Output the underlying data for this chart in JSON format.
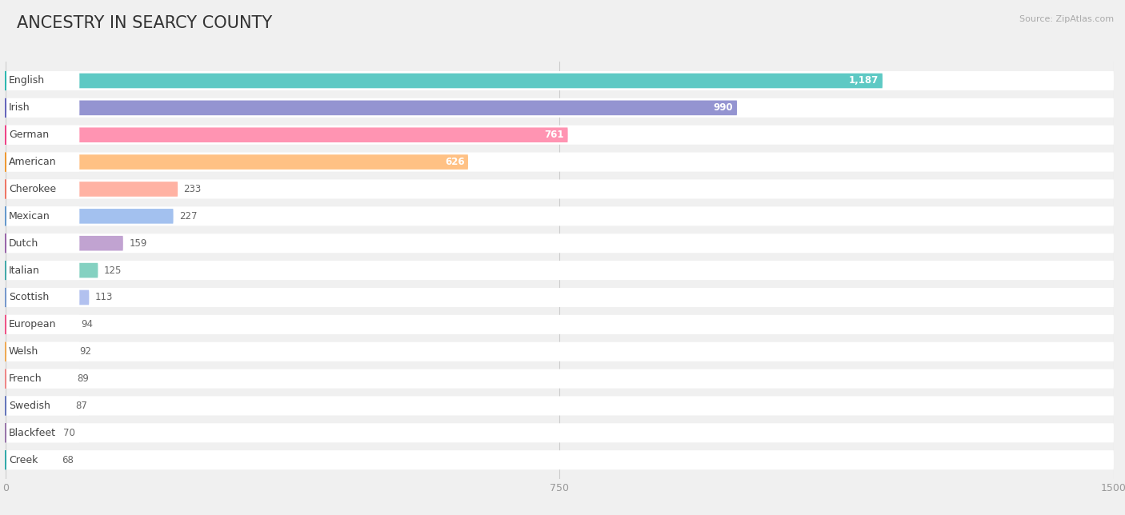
{
  "title": "ANCESTRY IN SEARCY COUNTY",
  "source": "Source: ZipAtlas.com",
  "categories": [
    "English",
    "Irish",
    "German",
    "American",
    "Cherokee",
    "Mexican",
    "Dutch",
    "Italian",
    "Scottish",
    "European",
    "Welsh",
    "French",
    "Swedish",
    "Blackfeet",
    "Creek"
  ],
  "values": [
    1187,
    990,
    761,
    626,
    233,
    227,
    159,
    125,
    113,
    94,
    92,
    89,
    87,
    70,
    68
  ],
  "bar_colors": [
    "#4cc4be",
    "#8888cc",
    "#ff88aa",
    "#ffbb77",
    "#ffaa99",
    "#99bbee",
    "#bb99cc",
    "#77ccbb",
    "#aabbee",
    "#ff99bb",
    "#ffcc99",
    "#ffbbbb",
    "#99aadd",
    "#ccaacc",
    "#77cccc"
  ],
  "icon_colors": [
    "#2eb8b0",
    "#6666bb",
    "#ee4488",
    "#ee9933",
    "#ee7766",
    "#6699cc",
    "#9966aa",
    "#44aaaa",
    "#7799cc",
    "#ee5588",
    "#eeaa55",
    "#ee8888",
    "#6677bb",
    "#9977aa",
    "#33aaaa"
  ],
  "xlim_max": 1500,
  "xticks": [
    0,
    750,
    1500
  ],
  "bg_color": "#f0f0f0",
  "row_bg_color": "#ffffff",
  "title_fontsize": 15,
  "label_fontsize": 9,
  "value_fontsize": 8.5
}
